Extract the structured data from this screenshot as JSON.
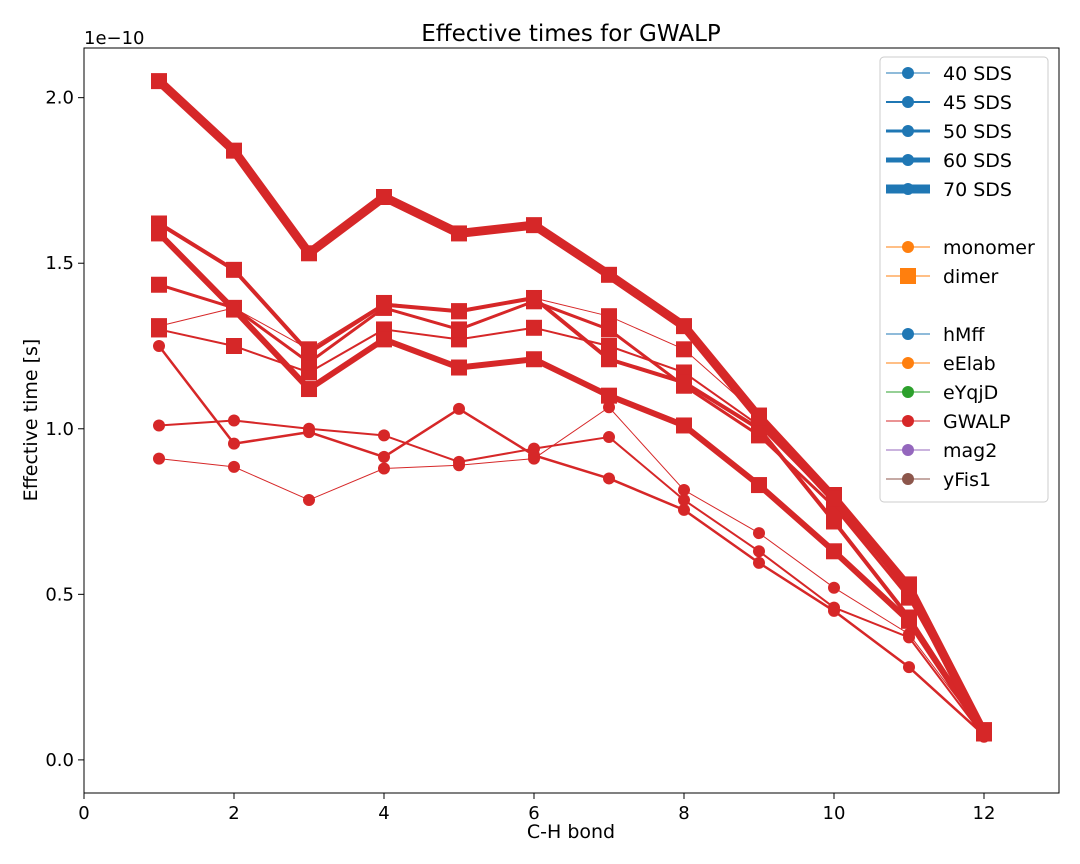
{
  "chart_data": {
    "type": "line",
    "title": "Effective times for GWALP",
    "xlabel": "C-H bond",
    "ylabel": "Effective time [s]",
    "y_offset_label": "1e−10",
    "xlim": [
      0,
      13
    ],
    "ylim": [
      -0.1,
      2.15
    ],
    "x_ticks": [
      0,
      2,
      4,
      6,
      8,
      10,
      12
    ],
    "y_ticks": [
      0.0,
      0.5,
      1.0,
      1.5,
      2.0
    ],
    "x_tick_labels": [
      "0",
      "2",
      "4",
      "6",
      "8",
      "10",
      "12"
    ],
    "y_tick_labels": [
      "0.0",
      "0.5",
      "1.0",
      "1.5",
      "2.0"
    ],
    "grid": false,
    "legend_position": "top-right",
    "legend": [
      {
        "label": "40 SDS",
        "color": "#1f77b4",
        "marker": "circle",
        "lw": 1
      },
      {
        "label": "45 SDS",
        "color": "#1f77b4",
        "marker": "circle",
        "lw": 2
      },
      {
        "label": "50 SDS",
        "color": "#1f77b4",
        "marker": "circle",
        "lw": 3
      },
      {
        "label": "60 SDS",
        "color": "#1f77b4",
        "marker": "circle",
        "lw": 5
      },
      {
        "label": "70 SDS",
        "color": "#1f77b4",
        "marker": "circle",
        "lw": 9
      },
      {
        "label": "",
        "spacer": true
      },
      {
        "label": "monomer",
        "color": "#ff7f0e",
        "marker": "circle",
        "lw": 1
      },
      {
        "label": "dimer",
        "color": "#ff7f0e",
        "marker": "square",
        "lw": 1
      },
      {
        "label": "",
        "spacer": true
      },
      {
        "label": "hMff",
        "color": "#1f77b4",
        "marker": "circle",
        "lw": 1
      },
      {
        "label": "eElab",
        "color": "#ff7f0e",
        "marker": "circle",
        "lw": 1
      },
      {
        "label": "eYqjD",
        "color": "#2ca02c",
        "marker": "circle",
        "lw": 1
      },
      {
        "label": "GWALP",
        "color": "#d62728",
        "marker": "circle",
        "lw": 1
      },
      {
        "label": "mag2",
        "color": "#9467bd",
        "marker": "circle",
        "lw": 1
      },
      {
        "label": "yFis1",
        "color": "#8c564b",
        "marker": "circle",
        "lw": 1
      }
    ],
    "series": [
      {
        "color": "#d62728",
        "marker": "circle",
        "lw": 1,
        "x": [
          1,
          2,
          3,
          4,
          5,
          6,
          7,
          8,
          9,
          10,
          11,
          12
        ],
        "y": [
          0.91,
          0.885,
          0.785,
          0.88,
          0.89,
          0.91,
          1.065,
          0.815,
          0.685,
          0.52,
          0.38,
          0.08
        ]
      },
      {
        "color": "#d62728",
        "marker": "circle",
        "lw": 2,
        "x": [
          1,
          2,
          3,
          4,
          5,
          6,
          7,
          8,
          9,
          10,
          11,
          12
        ],
        "y": [
          1.01,
          1.025,
          1.0,
          0.98,
          0.9,
          0.94,
          0.975,
          0.785,
          0.63,
          0.46,
          0.37,
          0.07
        ]
      },
      {
        "color": "#d62728",
        "marker": "circle",
        "lw": 2.5,
        "x": [
          1,
          2,
          3,
          4,
          5,
          6,
          7,
          8,
          9,
          10,
          11,
          12
        ],
        "y": [
          1.25,
          0.955,
          0.99,
          0.915,
          1.06,
          0.92,
          0.85,
          0.755,
          0.595,
          0.45,
          0.28,
          0.075
        ]
      },
      {
        "color": "#d62728",
        "marker": "square",
        "lw": 1,
        "x": [
          1,
          2,
          3,
          4,
          5,
          6,
          7,
          8,
          9,
          10,
          11,
          12
        ],
        "y": [
          1.31,
          1.365,
          1.24,
          1.38,
          1.355,
          1.395,
          1.34,
          1.24,
          1.04,
          0.8,
          0.53,
          0.09
        ]
      },
      {
        "color": "#d62728",
        "marker": "square",
        "lw": 2,
        "x": [
          1,
          2,
          3,
          4,
          5,
          6,
          7,
          8,
          9,
          10,
          11,
          12
        ],
        "y": [
          1.3,
          1.25,
          1.17,
          1.3,
          1.27,
          1.305,
          1.25,
          1.17,
          1.01,
          0.78,
          0.5,
          0.085
        ]
      },
      {
        "color": "#d62728",
        "marker": "square",
        "lw": 3,
        "x": [
          1,
          2,
          3,
          4,
          5,
          6,
          7,
          8,
          9,
          10,
          11,
          12
        ],
        "y": [
          1.435,
          1.365,
          1.2,
          1.365,
          1.3,
          1.385,
          1.3,
          1.13,
          0.98,
          0.765,
          0.49,
          0.085
        ]
      },
      {
        "color": "#d62728",
        "marker": "square",
        "lw": 4,
        "x": [
          1,
          2,
          3,
          4,
          5,
          6,
          7,
          8,
          9,
          10,
          11,
          12
        ],
        "y": [
          1.62,
          1.48,
          1.23,
          1.375,
          1.355,
          1.395,
          1.21,
          1.14,
          1.0,
          0.72,
          0.43,
          0.08
        ]
      },
      {
        "color": "#d62728",
        "marker": "square",
        "lw": 6,
        "x": [
          1,
          2,
          3,
          4,
          5,
          6,
          7,
          8,
          9,
          10,
          11,
          12
        ],
        "y": [
          1.59,
          1.36,
          1.12,
          1.27,
          1.185,
          1.21,
          1.1,
          1.01,
          0.83,
          0.63,
          0.42,
          0.08
        ]
      },
      {
        "color": "#d62728",
        "marker": "square",
        "lw": 9,
        "x": [
          1,
          2,
          3,
          4,
          5,
          6,
          7,
          8,
          9,
          10,
          11,
          12
        ],
        "y": [
          2.05,
          1.84,
          1.53,
          1.7,
          1.59,
          1.615,
          1.465,
          1.31,
          1.035,
          0.79,
          0.52,
          0.08
        ]
      }
    ]
  }
}
